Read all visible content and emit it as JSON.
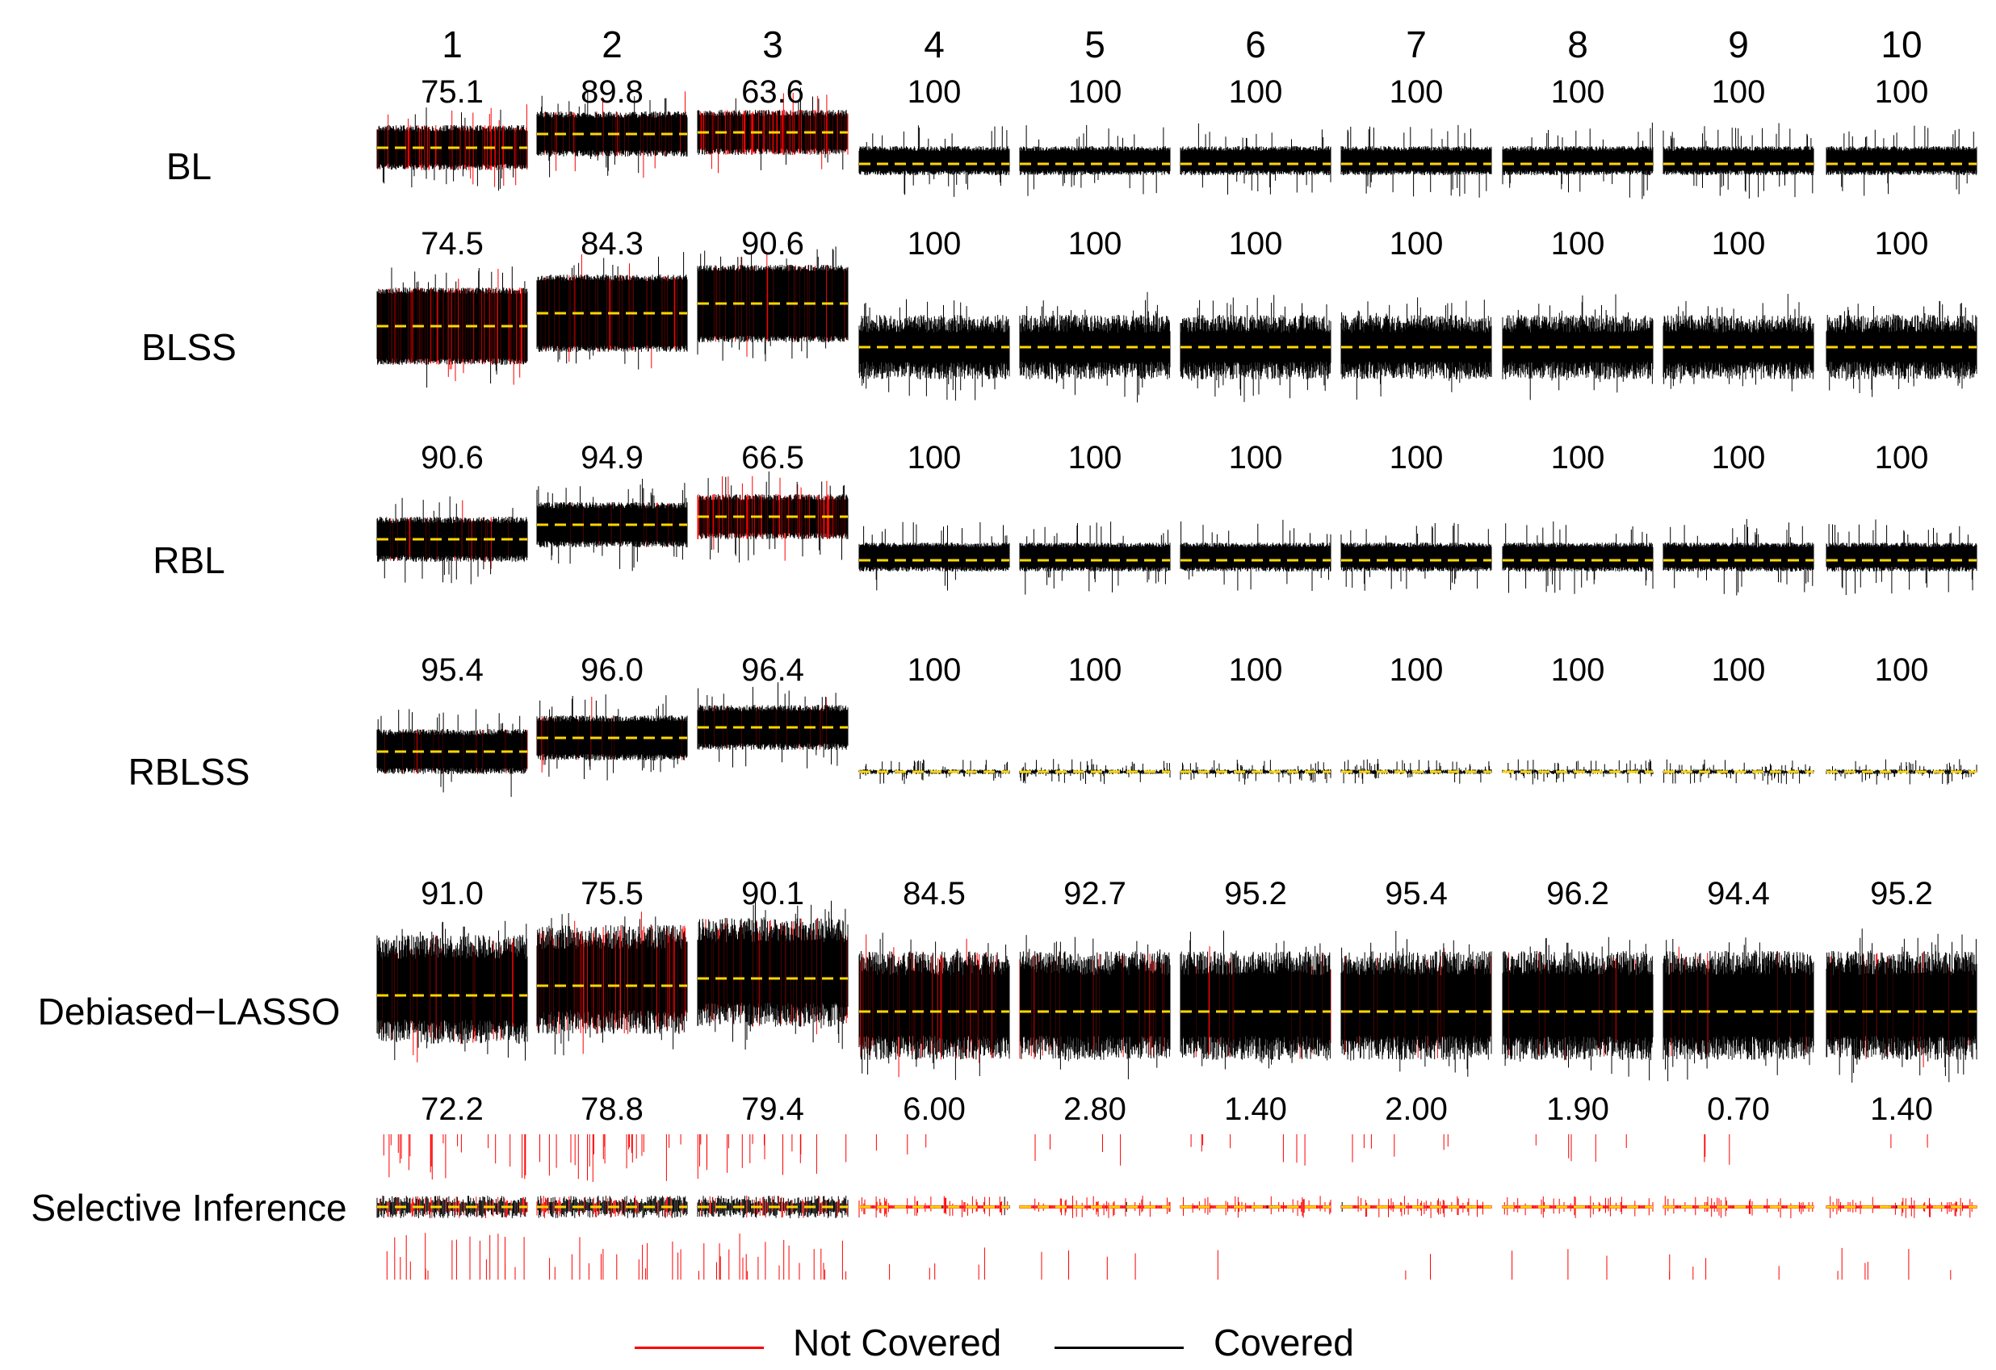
{
  "chart_data": {
    "type": "line",
    "columns": [
      "1",
      "2",
      "3",
      "4",
      "5",
      "6",
      "7",
      "8",
      "9",
      "10"
    ],
    "rows": [
      {
        "label": "BL",
        "coverage": [
          "75.1",
          "89.8",
          "63.6",
          "100",
          "100",
          "100",
          "100",
          "100",
          "100",
          "100"
        ]
      },
      {
        "label": "BLSS",
        "coverage": [
          "74.5",
          "84.3",
          "90.6",
          "100",
          "100",
          "100",
          "100",
          "100",
          "100",
          "100"
        ]
      },
      {
        "label": "RBL",
        "coverage": [
          "90.6",
          "94.9",
          "66.5",
          "100",
          "100",
          "100",
          "100",
          "100",
          "100",
          "100"
        ]
      },
      {
        "label": "RBLSS",
        "coverage": [
          "95.4",
          "96.0",
          "96.4",
          "100",
          "100",
          "100",
          "100",
          "100",
          "100",
          "100"
        ]
      },
      {
        "label": "Debiased−LASSO",
        "coverage": [
          "91.0",
          "75.5",
          "90.1",
          "84.5",
          "92.7",
          "95.2",
          "95.4",
          "96.2",
          "94.4",
          "95.2"
        ]
      },
      {
        "label": "Selective Inference",
        "coverage": [
          "72.2",
          "78.8",
          "79.4",
          "6.00",
          "2.80",
          "1.40",
          "2.00",
          "1.90",
          "0.70",
          "1.40"
        ]
      }
    ],
    "legend": [
      {
        "name": "Not Covered",
        "color": "#ff0000"
      },
      {
        "name": "Covered",
        "color": "#000000"
      }
    ],
    "true_value_line_color": "#ffd700",
    "legend_position": "bottom"
  }
}
